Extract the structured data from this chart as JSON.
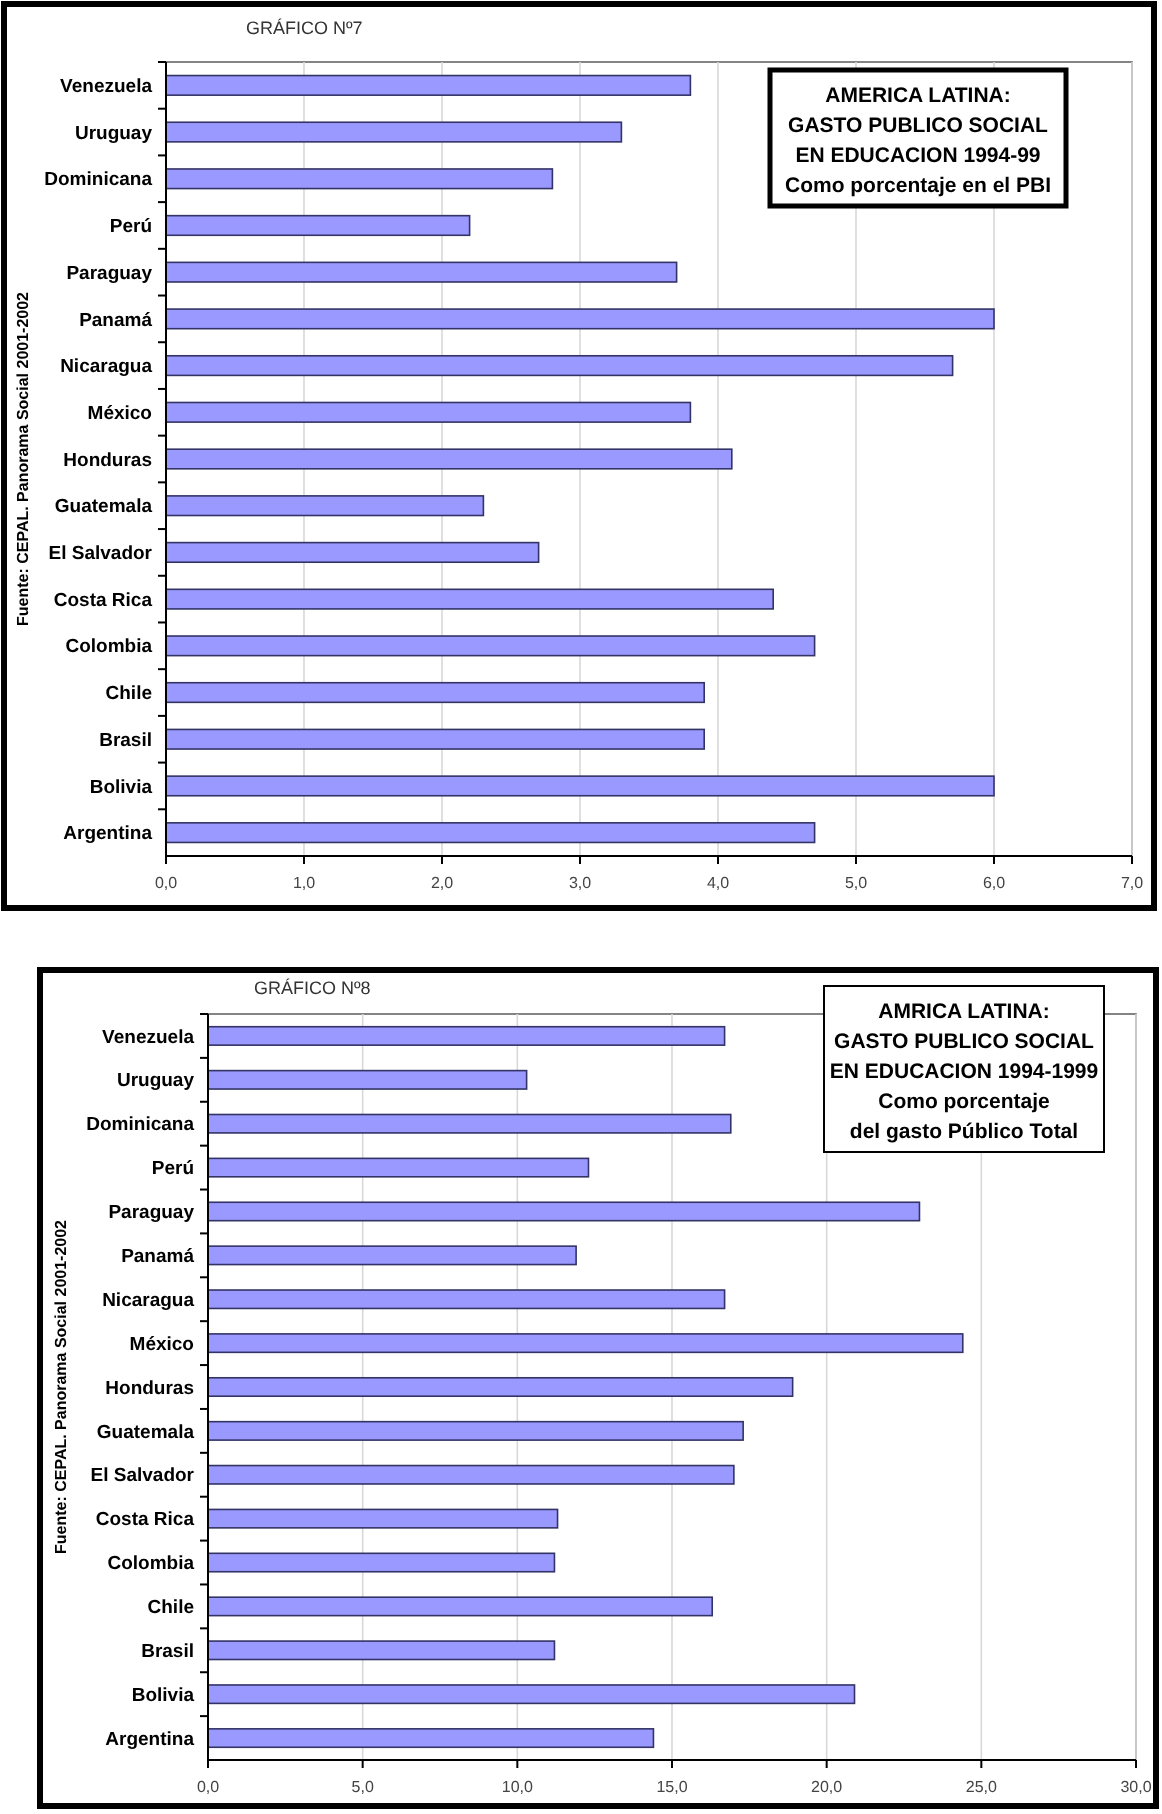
{
  "chart_data": [
    {
      "type": "bar",
      "orientation": "horizontal",
      "title": "AMERICA LATINA:\nGASTO PUBLICO SOCIAL\nEN EDUCACION 1994-99\nComo porcentaje en el PBI",
      "ylabel": "Fuente: CEPAL. Panorama Social 2001-2002",
      "annotations": [
        "GRÁFICO Nº7"
      ],
      "categories": [
        "Venezuela",
        "Uruguay",
        "Dominicana",
        "Perú",
        "Paraguay",
        "Panamá",
        "Nicaragua",
        "México",
        "Honduras",
        "Guatemala",
        "El Salvador",
        "Costa Rica",
        "Colombia",
        "Chile",
        "Brasil",
        "Bolivia",
        "Argentina"
      ],
      "values": [
        3.8,
        3.3,
        2.8,
        2.2,
        3.7,
        6.0,
        5.7,
        3.8,
        4.1,
        2.3,
        2.7,
        4.4,
        4.7,
        3.9,
        3.9,
        6.0,
        4.7
      ],
      "color": "#9999ff",
      "xlim": [
        0,
        7
      ],
      "xticks": [
        {
          "value": 0,
          "label": "0,0"
        },
        {
          "value": 1,
          "label": "1,0"
        },
        {
          "value": 2,
          "label": "2,0"
        },
        {
          "value": 3,
          "label": "3,0"
        },
        {
          "value": 4,
          "label": "4,0"
        },
        {
          "value": 5,
          "label": "5,0"
        },
        {
          "value": 6,
          "label": "6,0"
        },
        {
          "value": 7,
          "label": "7,0"
        }
      ],
      "grid": "x"
    },
    {
      "type": "bar",
      "orientation": "horizontal",
      "title": "AMRICA LATINA:\nGASTO PUBLICO SOCIAL\nEN EDUCACION 1994-1999\nComo porcentaje\ndel gasto Público Total",
      "ylabel": "Fuente: CEPAL. Panorama Social 2001-2002",
      "annotations": [
        "GRÁFICO Nº8"
      ],
      "categories": [
        "Venezuela",
        "Uruguay",
        "Dominicana",
        "Perú",
        "Paraguay",
        "Panamá",
        "Nicaragua",
        "México",
        "Honduras",
        "Guatemala",
        "El Salvador",
        "Costa Rica",
        "Colombia",
        "Chile",
        "Brasil",
        "Bolivia",
        "Argentina"
      ],
      "values": [
        16.7,
        10.3,
        16.9,
        12.3,
        23.0,
        11.9,
        16.7,
        24.4,
        18.9,
        17.3,
        17.0,
        11.3,
        11.2,
        16.3,
        11.2,
        20.9,
        14.4
      ],
      "color": "#9999ff",
      "xlim": [
        0,
        30
      ],
      "xticks": [
        {
          "value": 0,
          "label": "0,0"
        },
        {
          "value": 5,
          "label": "5,0"
        },
        {
          "value": 10,
          "label": "10,0"
        },
        {
          "value": 15,
          "label": "15,0"
        },
        {
          "value": 20,
          "label": "20,0"
        },
        {
          "value": 25,
          "label": "25,0"
        },
        {
          "value": 30,
          "label": "30,0"
        }
      ],
      "grid": "x"
    }
  ]
}
